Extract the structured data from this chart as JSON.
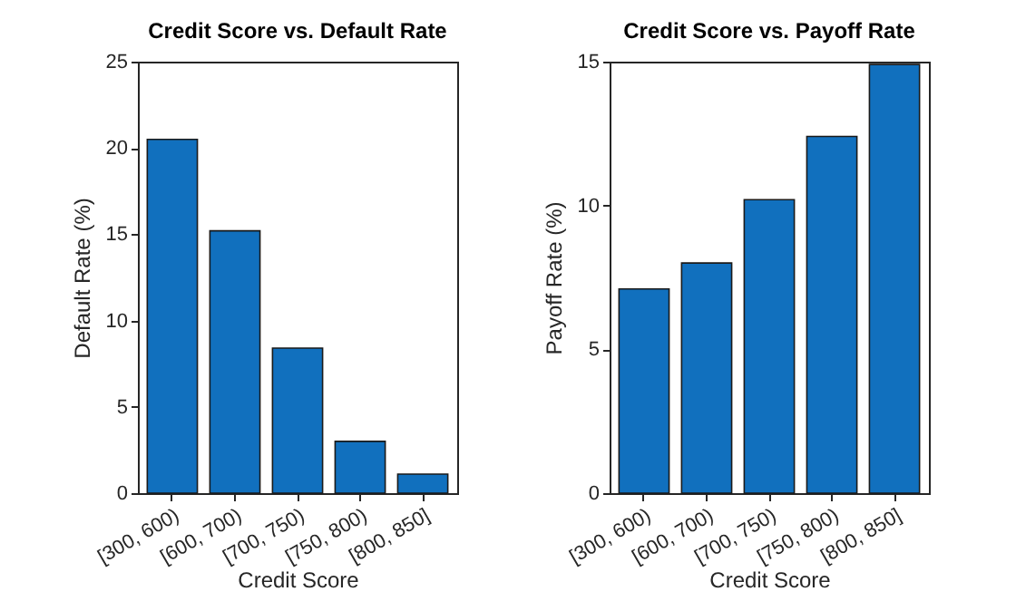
{
  "chart_data": [
    {
      "type": "bar",
      "title": "Credit Score vs. Default Rate",
      "xlabel": "Credit Score",
      "ylabel": "Default Rate (%)",
      "categories": [
        "[300, 600)",
        "[600, 700)",
        "[700, 750)",
        "[750, 800)",
        "[800, 850]"
      ],
      "values": [
        20.5,
        15.2,
        8.4,
        3.0,
        1.1
      ],
      "color": "#1170be",
      "ylim": [
        0,
        25
      ],
      "yticks": [
        0,
        5,
        10,
        15,
        20,
        25
      ]
    },
    {
      "type": "bar",
      "title": "Credit Score vs. Payoff Rate",
      "xlabel": "Credit Score",
      "ylabel": "Payoff Rate (%)",
      "categories": [
        "[300, 600)",
        "[600, 700)",
        "[700, 750)",
        "[750, 800)",
        "[800, 850]"
      ],
      "values": [
        7.1,
        8.0,
        10.2,
        12.4,
        14.9
      ],
      "color": "#1170be",
      "ylim": [
        0,
        15
      ],
      "yticks": [
        0,
        5,
        10,
        15
      ]
    }
  ]
}
